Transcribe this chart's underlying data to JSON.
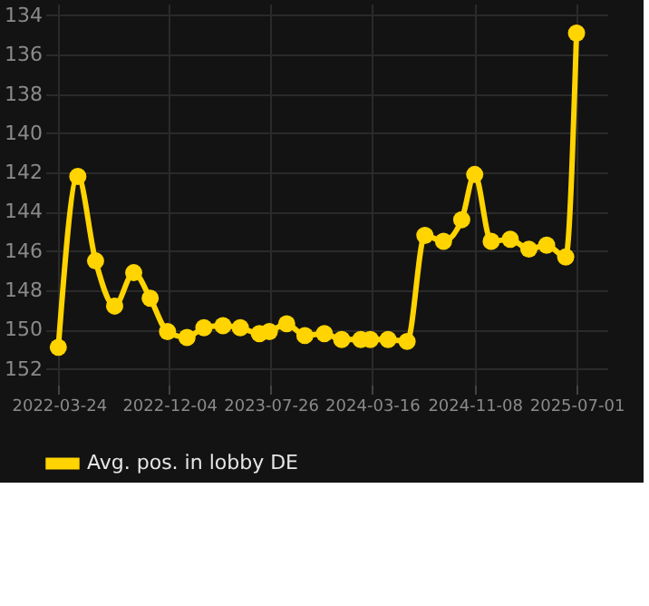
{
  "chart_data": {
    "type": "line",
    "legend": "bottom",
    "grid": true,
    "marker": "circle",
    "line_style": "solid",
    "xlim": [
      "2022-02-21",
      "2025-09-10"
    ],
    "xticks": [
      "2022-03-24",
      "2022-12-04",
      "2023-07-26",
      "2024-03-16",
      "2024-11-08",
      "2025-07-01"
    ],
    "ylim": [
      152.8,
      133.4
    ],
    "yticks": [
      134,
      136,
      138,
      140,
      142,
      144,
      146,
      148,
      150,
      152
    ],
    "x": [
      "2022-03-23",
      "2022-05-07",
      "2022-06-17",
      "2022-07-31",
      "2022-09-13",
      "2022-10-21",
      "2022-11-30",
      "2023-01-14",
      "2023-02-22",
      "2023-04-07",
      "2023-05-17",
      "2023-06-30",
      "2023-07-23",
      "2023-09-01",
      "2023-10-13",
      "2023-11-27",
      "2024-01-06",
      "2024-02-19",
      "2024-03-12",
      "2024-04-22",
      "2024-06-05",
      "2024-07-16",
      "2024-08-28",
      "2024-10-09",
      "2024-11-08",
      "2024-12-16",
      "2025-01-29",
      "2025-03-13",
      "2025-04-23",
      "2025-06-06",
      "2025-07-01"
    ],
    "series": [
      {
        "name": "Avg. pos. in lobby DE",
        "color": "#ffd400",
        "values": [
          150.9,
          142.2,
          146.5,
          148.8,
          147.1,
          148.4,
          150.1,
          150.4,
          149.9,
          149.8,
          149.9,
          150.2,
          150.1,
          149.7,
          150.3,
          150.2,
          150.5,
          150.5,
          150.5,
          150.5,
          150.6,
          145.2,
          145.5,
          144.4,
          142.1,
          145.5,
          145.4,
          145.9,
          145.7,
          146.3,
          134.9
        ]
      }
    ]
  }
}
